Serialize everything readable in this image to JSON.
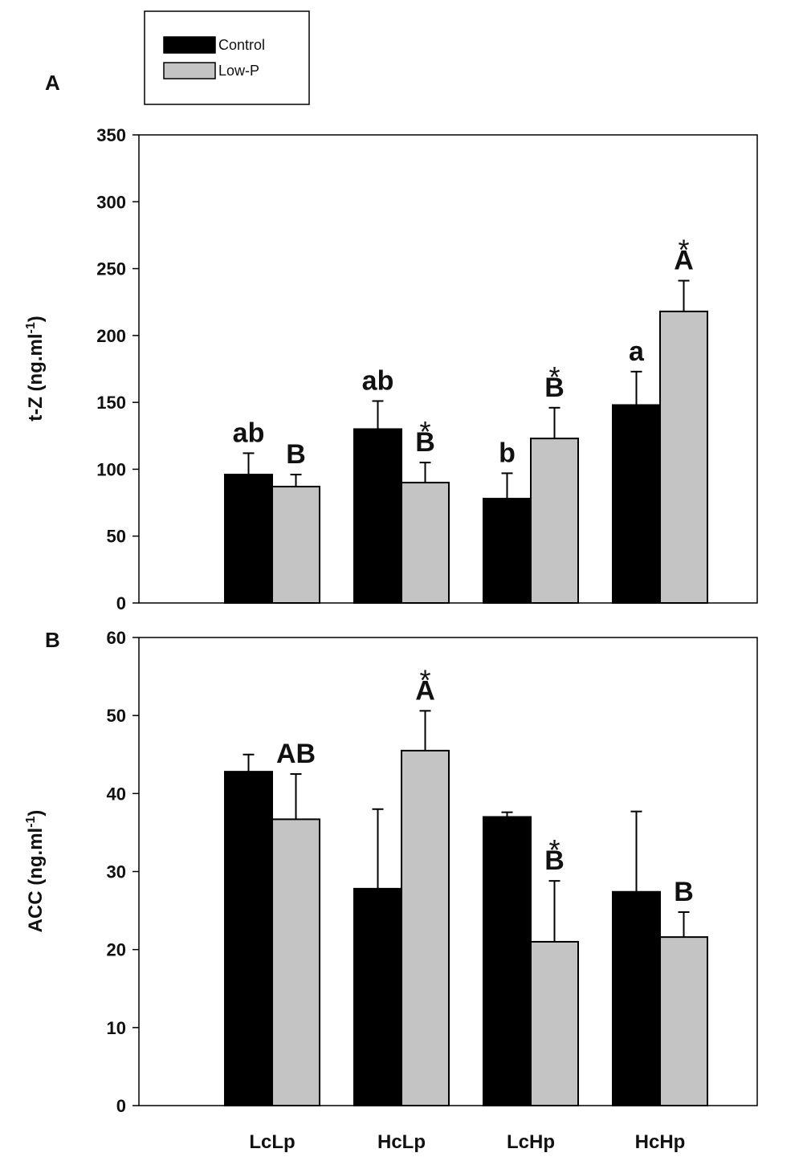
{
  "legend": [
    {
      "name": "Control",
      "color": "#000000"
    },
    {
      "name": "Low-P",
      "color": "#c4c4c4"
    }
  ],
  "colors": {
    "control": "#000000",
    "lowp": "#c4c4c4",
    "axis": "#000000"
  },
  "chart_data": [
    {
      "type": "bar",
      "panel_label": "A",
      "ylabel": "t-Z (ng.ml",
      "ylabel_sup": "-1",
      "ylabel_close": ")",
      "ylim": [
        0,
        350
      ],
      "yticks": [
        0,
        50,
        100,
        150,
        200,
        250,
        300,
        350
      ],
      "categories": [
        "LcLp",
        "HcLp",
        "LcHp",
        "HcHp"
      ],
      "series": [
        {
          "name": "Control",
          "values": [
            96,
            130,
            78,
            148
          ],
          "errors": [
            16,
            21,
            19,
            25
          ],
          "letters": [
            "ab",
            "ab",
            "b",
            "a"
          ],
          "stars": [
            false,
            false,
            false,
            false
          ]
        },
        {
          "name": "Low-P",
          "values": [
            87,
            90,
            123,
            218
          ],
          "errors": [
            9,
            15,
            23,
            23
          ],
          "letters": [
            "B",
            "B",
            "B",
            "A"
          ],
          "stars": [
            false,
            true,
            true,
            true
          ]
        }
      ]
    },
    {
      "type": "bar",
      "panel_label": "B",
      "ylabel": "ACC (ng.ml",
      "ylabel_sup": "-1",
      "ylabel_close": ")",
      "ylim": [
        0,
        60
      ],
      "yticks": [
        0,
        10,
        20,
        30,
        40,
        50,
        60
      ],
      "categories": [
        "LcLp",
        "HcLp",
        "LcHp",
        "HcHp"
      ],
      "series": [
        {
          "name": "Control",
          "values": [
            42.8,
            27.8,
            37.0,
            27.4
          ],
          "errors": [
            2.2,
            10.2,
            0.6,
            10.3
          ],
          "letters": [
            "",
            "",
            "",
            ""
          ],
          "stars": [
            false,
            false,
            false,
            false
          ]
        },
        {
          "name": "Low-P",
          "values": [
            36.7,
            45.5,
            21.0,
            21.6
          ],
          "errors": [
            5.8,
            5.1,
            7.8,
            3.2
          ],
          "letters": [
            "AB",
            "A",
            "B",
            "B"
          ],
          "stars": [
            false,
            true,
            true,
            false
          ]
        }
      ]
    }
  ]
}
